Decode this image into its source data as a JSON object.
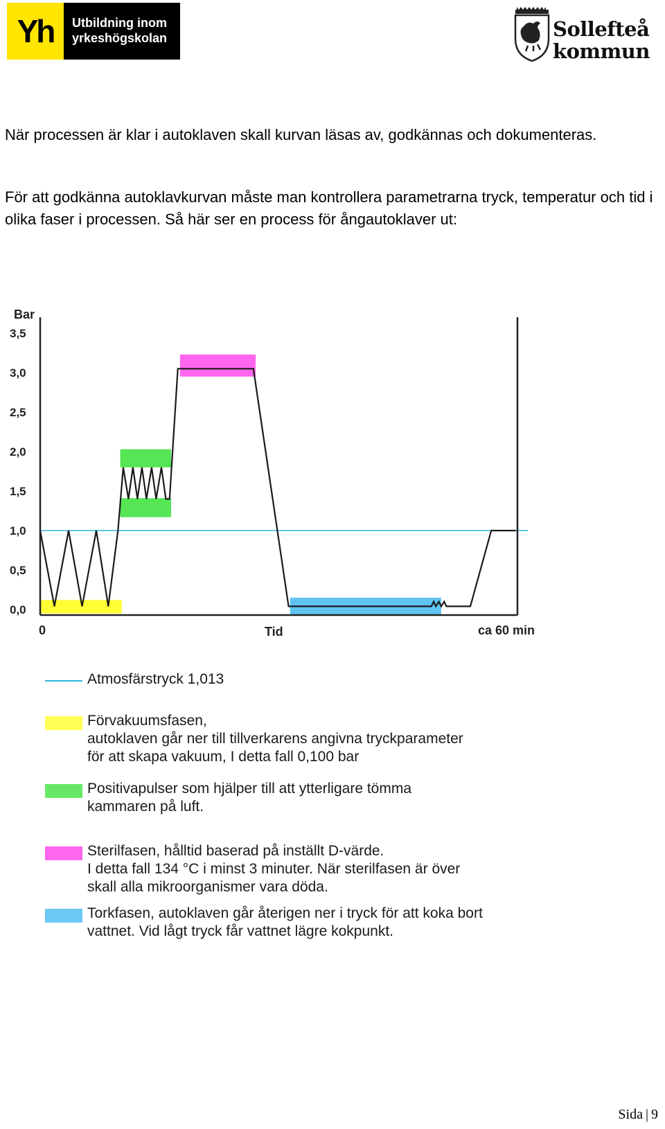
{
  "header": {
    "yh_logo_mark": "Yh",
    "yh_logo_line1": "Utbildning inom",
    "yh_logo_line2": "yrkeshögskolan",
    "municipality_line1": "Sollefteå",
    "municipality_line2": "kommun"
  },
  "body": {
    "paragraph1": "När processen är klar i autoklaven skall kurvan läsas av, godkännas och dokumenteras.",
    "paragraph2": "För att godkänna autoklavkurvan måste man kontrollera parametrarna tryck, temperatur och tid i olika faser i processen. Så här ser en process för ångautoklaver ut:"
  },
  "chart_data": {
    "type": "line",
    "ylabel": "Bar",
    "yticks": [
      "3,5",
      "3,0",
      "2,5",
      "2,0",
      "1,5",
      "1,0",
      "0,5",
      "0,0"
    ],
    "xlabel": "Tid",
    "x_start_label": "0",
    "x_end_label": "ca 60 min",
    "xlim": [
      0,
      60
    ],
    "ylim": [
      0,
      3.5
    ],
    "grid": false,
    "atmospheric_pressure": 1.0,
    "series": [
      {
        "values_xy": [
          [
            0,
            1.0
          ],
          [
            1.9,
            0.04
          ],
          [
            3.8,
            1.0
          ],
          [
            5.6,
            0.04
          ],
          [
            7.5,
            1.0
          ],
          [
            9.1,
            0.04
          ],
          [
            10.4,
            1.0
          ],
          [
            11.1,
            1.8
          ],
          [
            11.8,
            1.4
          ],
          [
            12.4,
            1.8
          ],
          [
            13.0,
            1.4
          ],
          [
            13.6,
            1.8
          ],
          [
            14.2,
            1.4
          ],
          [
            14.9,
            1.8
          ],
          [
            15.5,
            1.4
          ],
          [
            16.2,
            1.8
          ],
          [
            16.8,
            1.4
          ],
          [
            17.3,
            1.4
          ],
          [
            18.4,
            3.05
          ],
          [
            28.5,
            3.05
          ],
          [
            33.2,
            0.04
          ],
          [
            52.3,
            0.04
          ],
          [
            52.6,
            0.1
          ],
          [
            52.9,
            0.04
          ],
          [
            53.3,
            0.1
          ],
          [
            53.6,
            0.04
          ],
          [
            54.0,
            0.1
          ],
          [
            54.3,
            0.04
          ],
          [
            57.5,
            0.04
          ],
          [
            60.3,
            1.0
          ],
          [
            63.6,
            1.0
          ]
        ]
      }
    ],
    "phases": [
      {
        "name": "prevacuum",
        "color": "#ffff33",
        "x": [
          0,
          10.9
        ],
        "y": [
          -0.05,
          0.12
        ]
      },
      {
        "name": "pulses_high",
        "color": "#55e555",
        "x": [
          10.7,
          17.5
        ],
        "y": [
          1.8,
          2.03
        ]
      },
      {
        "name": "pulses_low",
        "color": "#55e555",
        "x": [
          10.7,
          17.5
        ],
        "y": [
          1.17,
          1.41
        ]
      },
      {
        "name": "sterile",
        "color": "#ff66ee",
        "x": [
          18.7,
          28.8
        ],
        "y": [
          2.95,
          3.23
        ]
      },
      {
        "name": "drying",
        "color": "#5fc4f2",
        "x": [
          33.4,
          53.6
        ],
        "y": [
          -0.07,
          0.15
        ]
      }
    ]
  },
  "legend": [
    {
      "kind": "line",
      "color": "#2bb7d8",
      "lines": [
        "Atmosfärstryck 1,013"
      ]
    },
    {
      "kind": "swatch",
      "color": "#ffff55",
      "lines": [
        "Förvakuumsfasen,",
        "autoklaven går ner till tillverkarens angivna tryckparameter",
        "för att skapa vakuum, I detta fall 0,100 bar"
      ]
    },
    {
      "kind": "swatch",
      "color": "#66e866",
      "lines": [
        "Positivapulser som hjälper till att ytterligare tömma",
        "kammaren på luft."
      ]
    },
    {
      "kind": "swatch",
      "color": "#ff66ee",
      "lines": [
        "Sterilfasen, hålltid baserad på inställt D-värde.",
        "I detta fall 134 °C i minst 3 minuter. När sterilfasen är över",
        "skall alla mikroorganismer vara döda."
      ]
    },
    {
      "kind": "swatch",
      "color": "#6cc8f4",
      "lines": [
        "Torkfasen, autoklaven går återigen ner i tryck för att koka bort",
        "vattnet. Vid lågt tryck får vattnet lägre kokpunkt."
      ]
    }
  ],
  "footer": {
    "page_label": "Sida",
    "separator": "|",
    "page_number": "9"
  }
}
